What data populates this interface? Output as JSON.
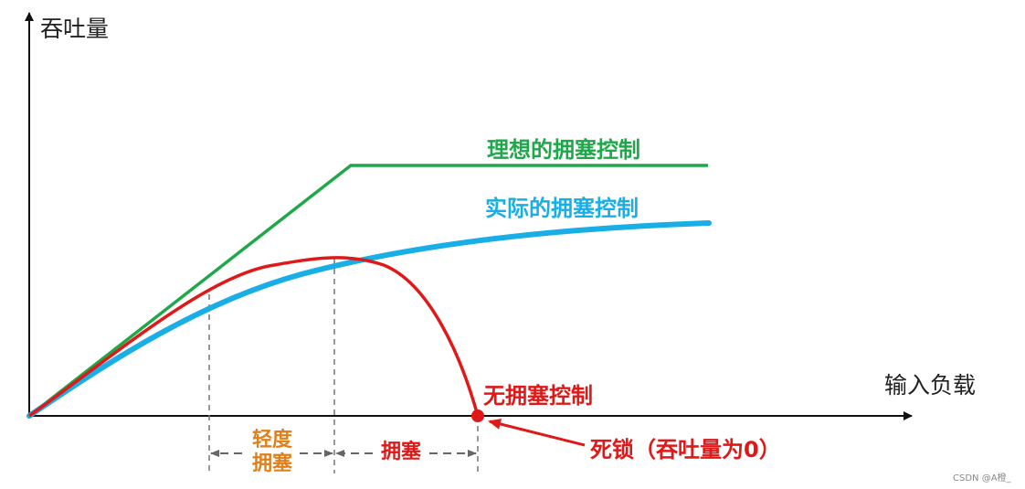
{
  "axes": {
    "y_label": "吞吐量",
    "x_label": "输入负载"
  },
  "curves": {
    "ideal": {
      "label": "理想的拥塞控制",
      "color": "#1fa84a"
    },
    "actual": {
      "label": "实际的拥塞控制",
      "color": "#19aee6"
    },
    "none": {
      "label": "无拥塞控制",
      "color": "#e01818"
    }
  },
  "regions": {
    "light": {
      "label_line1": "轻度",
      "label_line2": "拥塞",
      "color": "#e0801a"
    },
    "congestion": {
      "label": "拥塞",
      "color": "#e01818"
    }
  },
  "deadlock": {
    "label": "死锁（吞吐量为0）",
    "color": "#e01818"
  },
  "watermark": "CSDN @A橙_"
}
